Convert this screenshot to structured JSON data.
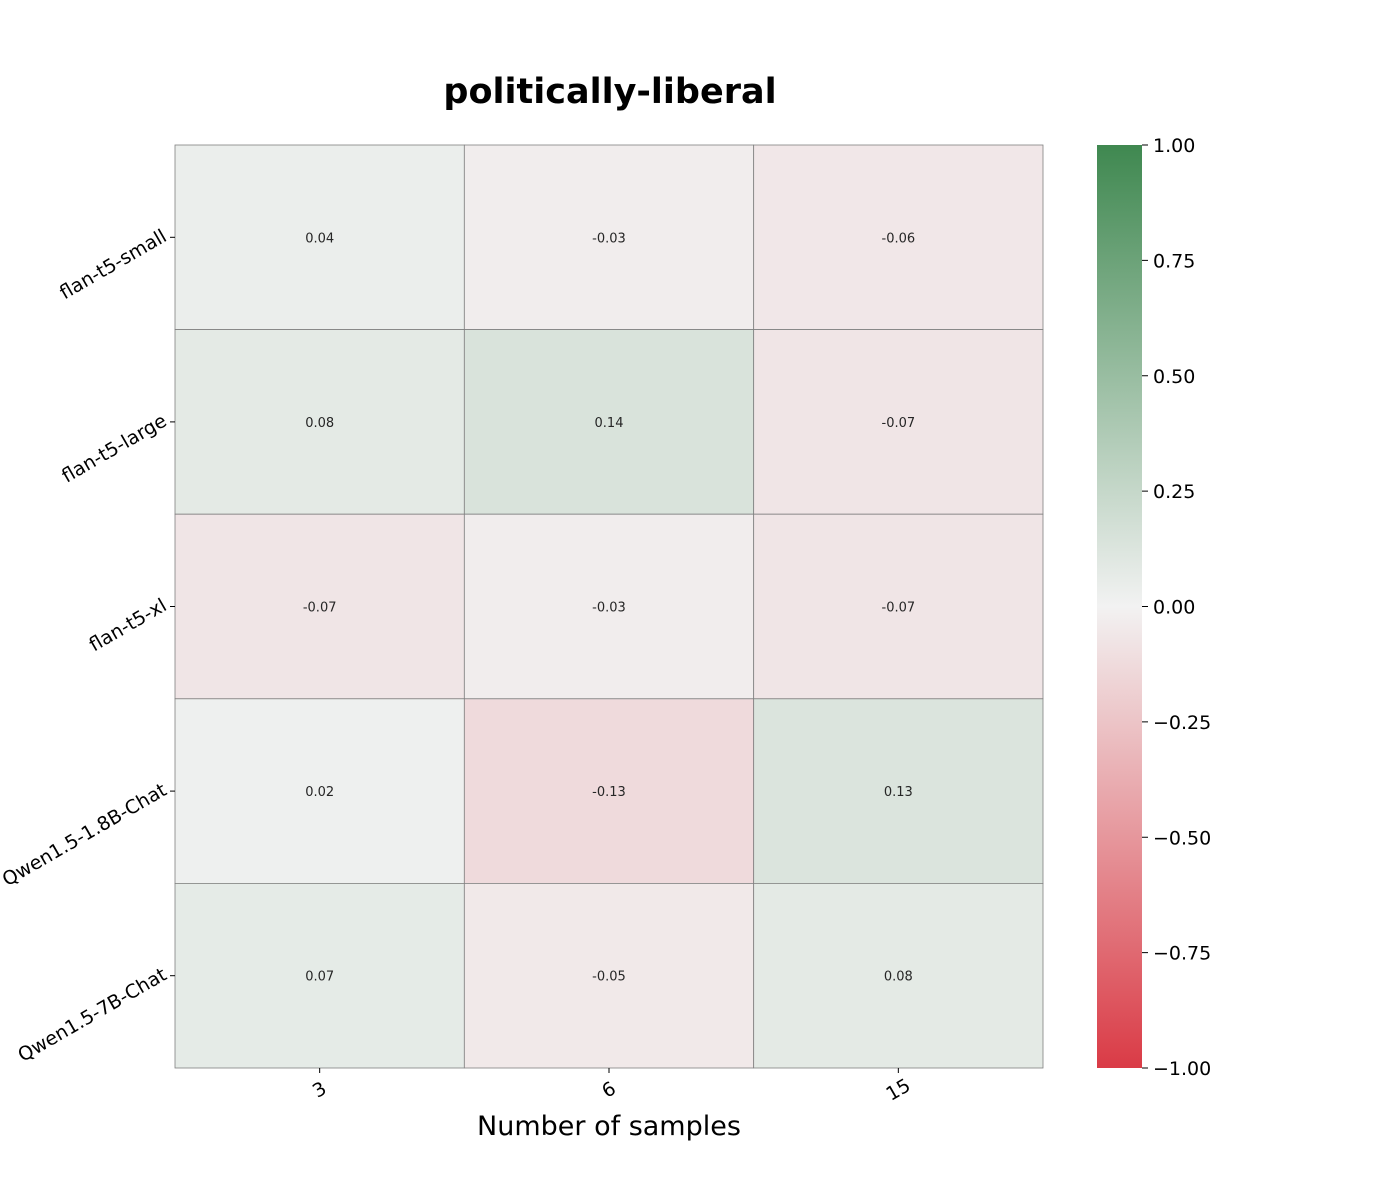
{
  "chart_data": {
    "type": "heatmap",
    "title": "politically-liberal",
    "xlabel": "Number of samples",
    "ylabel": "",
    "x_categories": [
      "3",
      "6",
      "15"
    ],
    "y_categories": [
      "flan-t5-small",
      "flan-t5-large",
      "flan-t5-xl",
      "Qwen1.5-1.8B-Chat",
      "Qwen1.5-7B-Chat"
    ],
    "values": [
      [
        0.04,
        -0.03,
        -0.06
      ],
      [
        0.08,
        0.14,
        -0.07
      ],
      [
        -0.07,
        -0.03,
        -0.07
      ],
      [
        0.02,
        -0.13,
        0.13
      ],
      [
        0.07,
        -0.05,
        0.08
      ]
    ],
    "value_labels": [
      [
        "0.04",
        "-0.03",
        "-0.06"
      ],
      [
        "0.08",
        "0.14",
        "-0.07"
      ],
      [
        "-0.07",
        "-0.03",
        "-0.07"
      ],
      [
        "0.02",
        "-0.13",
        "0.13"
      ],
      [
        "0.07",
        "-0.05",
        "0.08"
      ]
    ],
    "colorbar": {
      "range": [
        -1.0,
        1.0
      ],
      "ticks": [
        1.0,
        0.75,
        0.5,
        0.25,
        0.0,
        -0.25,
        -0.5,
        -0.75,
        -1.0
      ],
      "tick_labels": [
        "1.00",
        "0.75",
        "0.50",
        "0.25",
        "0.00",
        "−0.25",
        "−0.50",
        "−0.75",
        "−1.00"
      ]
    },
    "colors": {
      "low": "#da3b46",
      "mid": "#f2f2f2",
      "high": "#3f8850",
      "cell_border": "#808080"
    }
  }
}
